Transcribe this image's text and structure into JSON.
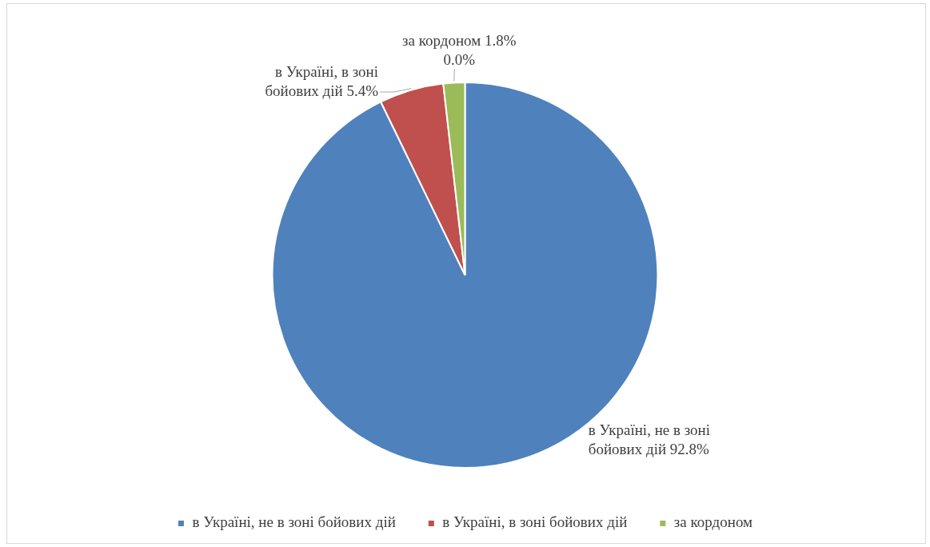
{
  "chart_data": {
    "type": "pie",
    "categories": [
      "в Україні, не в зоні бойових дій",
      "в Україні, в зоні бойових дій",
      "за кордоном",
      null
    ],
    "values": [
      92.8,
      5.4,
      1.8,
      0.0
    ],
    "colors": [
      "#4f81bd",
      "#c0504d",
      "#9bbb59",
      "#8064a2"
    ],
    "value_labels": [
      "92.8%",
      "5.4%",
      "1.8%",
      "0.0%"
    ],
    "legend": "bottom"
  }
}
